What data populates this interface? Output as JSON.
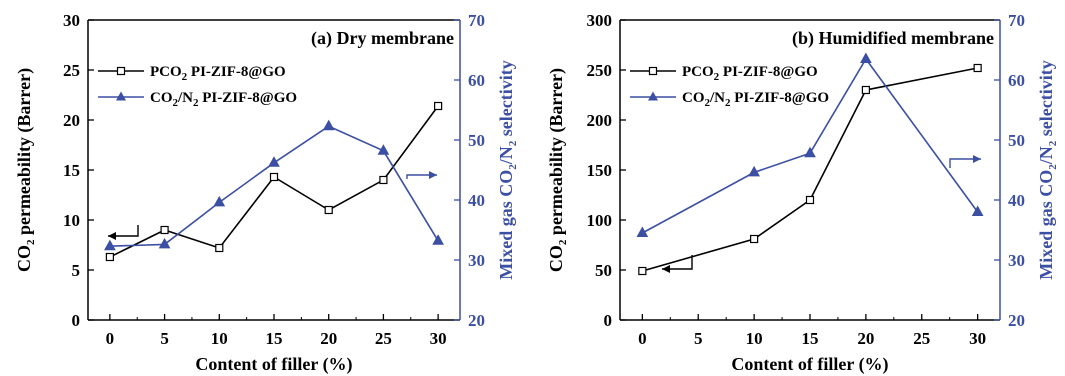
{
  "chart_data": [
    {
      "type": "line",
      "panel_label": "(a) Dry membrane",
      "xlabel": "Content of filler (%)",
      "ylabel_left": [
        "CO",
        "2",
        " permeability (Barrer)"
      ],
      "ylabel_right": [
        "Mixed gas CO",
        "2",
        "/N",
        "2",
        " selectivity"
      ],
      "x_ticks": [
        0,
        5,
        10,
        15,
        20,
        25,
        30
      ],
      "y_left_ticks": [
        0,
        5,
        10,
        15,
        20,
        25,
        30
      ],
      "y_right_ticks": [
        20,
        30,
        40,
        50,
        60,
        70
      ],
      "xlim": [
        -2,
        32
      ],
      "ylim_left": [
        0,
        30
      ],
      "ylim_right": [
        20,
        70
      ],
      "series": [
        {
          "name": "PCO2 PI-ZIF-8@GO",
          "legend": [
            "PCO",
            "2",
            "  PI-ZIF-8@GO"
          ],
          "axis": "left",
          "marker": "square",
          "color": "#000000",
          "x": [
            0,
            5,
            10,
            15,
            20,
            25,
            30
          ],
          "y": [
            6.3,
            9.0,
            7.2,
            14.3,
            11.0,
            14.0,
            21.4
          ]
        },
        {
          "name": "CO2/N2 PI-ZIF-8@GO",
          "legend": [
            "CO",
            "2",
            "/N",
            "2",
            " PI-ZIF-8@GO"
          ],
          "axis": "right",
          "marker": "triangle",
          "color": "#3b4fa3",
          "x": [
            0,
            5,
            10,
            15,
            20,
            25,
            30
          ],
          "y": [
            32.3,
            32.6,
            39.6,
            46.2,
            52.3,
            48.2,
            33.2
          ]
        }
      ]
    },
    {
      "type": "line",
      "panel_label": "(b) Humidified membrane",
      "xlabel": "Content of filler (%)",
      "ylabel_left": [
        "CO",
        "2",
        " permeability (Barrer)"
      ],
      "ylabel_right": [
        "Mixed gas CO",
        "2",
        "/N",
        "2",
        " selectivity"
      ],
      "x_ticks": [
        0,
        5,
        10,
        15,
        20,
        25,
        30
      ],
      "y_left_ticks": [
        0,
        50,
        100,
        150,
        200,
        250,
        300
      ],
      "y_right_ticks": [
        20,
        30,
        40,
        50,
        60,
        70
      ],
      "xlim": [
        -2,
        32
      ],
      "ylim_left": [
        0,
        300
      ],
      "ylim_right": [
        20,
        70
      ],
      "series": [
        {
          "name": "PCO2 PI-ZIF-8@GO",
          "legend": [
            "PCO",
            "2",
            "  PI-ZIF-8@GO"
          ],
          "axis": "left",
          "marker": "square",
          "color": "#000000",
          "x": [
            0,
            10,
            15,
            20,
            30
          ],
          "y": [
            49,
            81,
            120,
            230,
            252
          ]
        },
        {
          "name": "CO2/N2 PI-ZIF-8@GO",
          "legend": [
            "CO",
            "2",
            "/N",
            "2",
            " PI-ZIF-8@GO"
          ],
          "axis": "right",
          "marker": "triangle",
          "color": "#3b4fa3",
          "x": [
            0,
            10,
            15,
            20,
            30
          ],
          "y": [
            34.5,
            44.6,
            47.8,
            63.5,
            38.0
          ]
        }
      ]
    }
  ]
}
